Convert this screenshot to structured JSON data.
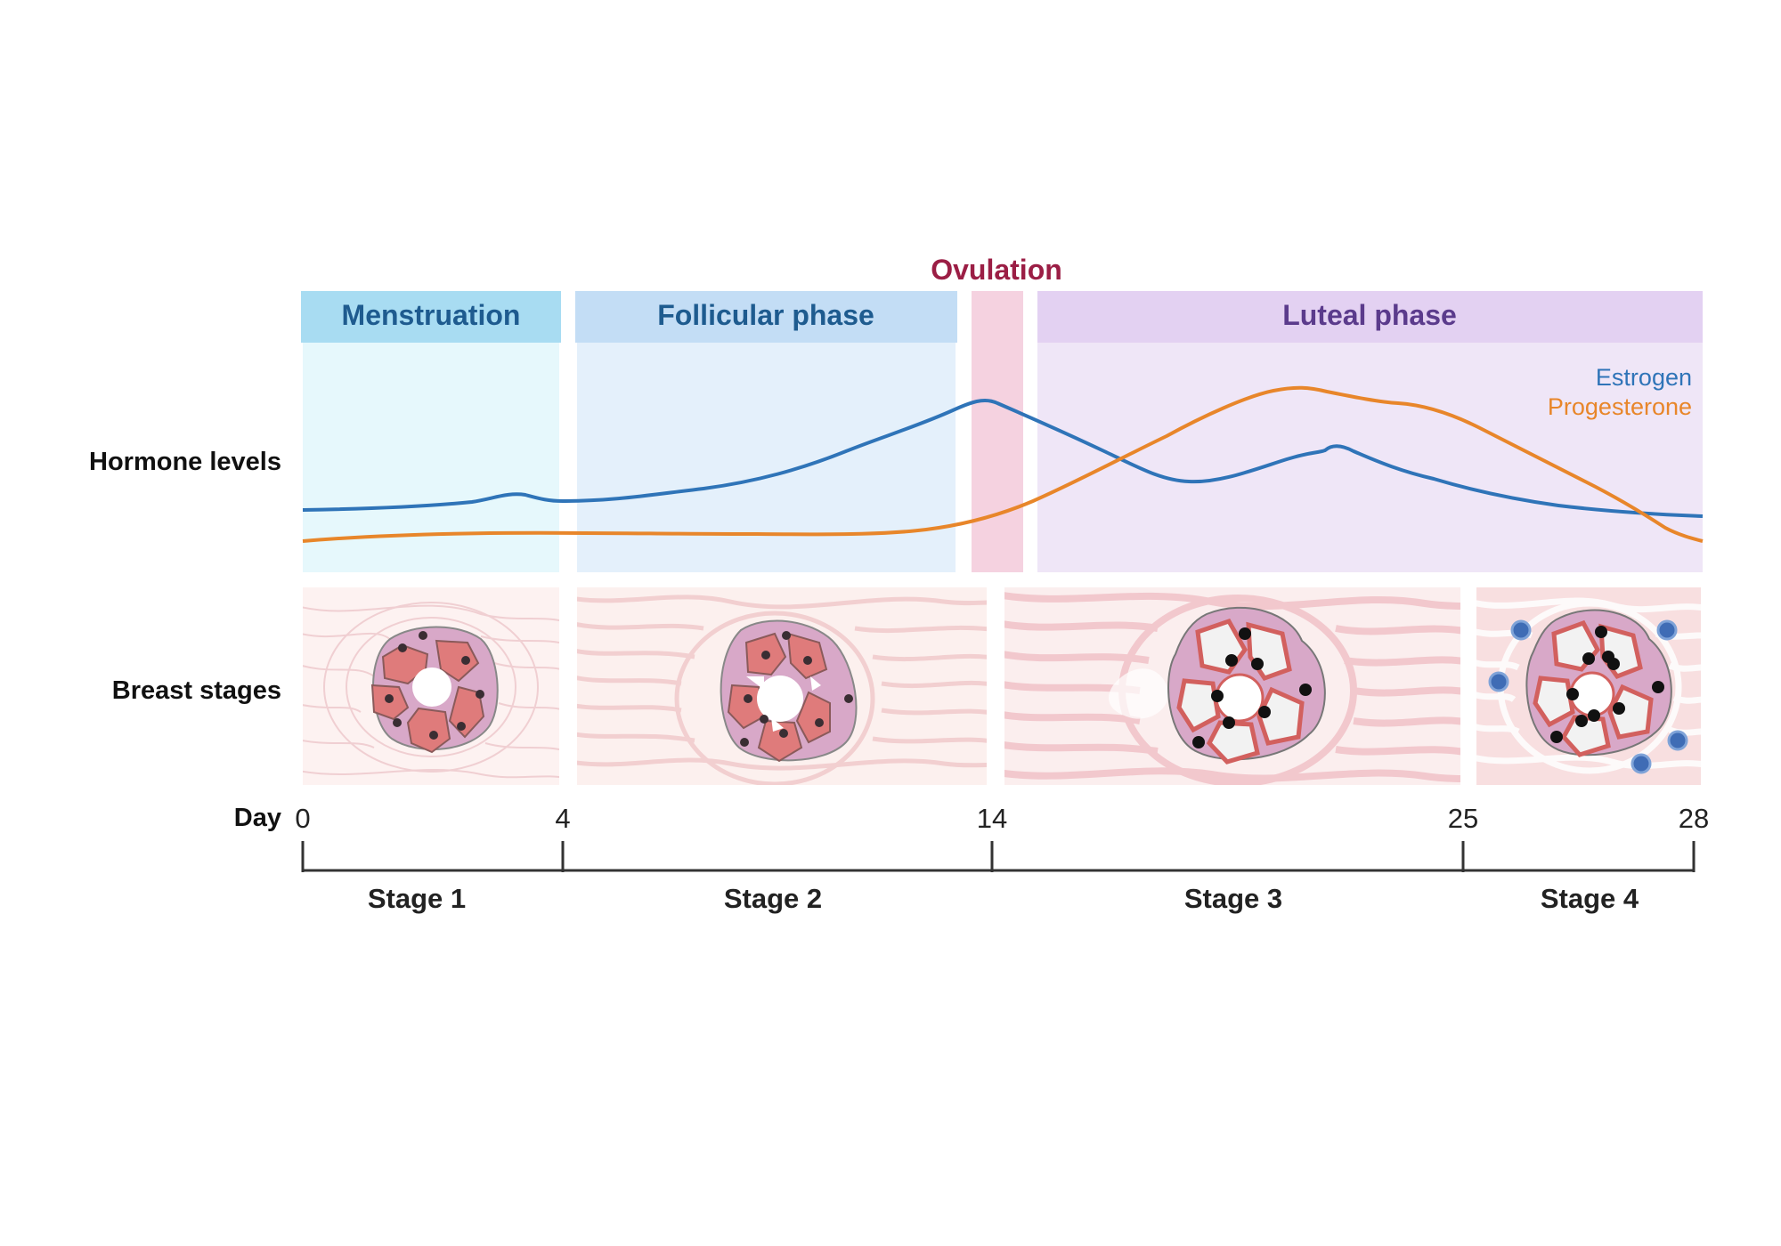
{
  "row_labels": {
    "hormone_levels": "Hormone levels",
    "breast_stages": "Breast stages"
  },
  "phases": {
    "menstruation": "Menstruation",
    "follicular": "Follicular phase",
    "ovulation": "Ovulation",
    "luteal": "Luteal phase"
  },
  "legend": {
    "estrogen": "Estrogen",
    "progesterone": "Progesterone"
  },
  "axis": {
    "label": "Day",
    "ticks": [
      "0",
      "4",
      "14",
      "25",
      "28"
    ]
  },
  "stages": [
    "Stage 1",
    "Stage 2",
    "Stage 3",
    "Stage 4"
  ],
  "colors": {
    "estrogen": "#2f74b8",
    "progesterone": "#e8862a",
    "menstruation_header": "#a8dcf2",
    "menstruation_body": "#e6f8fc",
    "menstruation_text": "#1e5b8f",
    "follicular_header": "#c3ddf5",
    "follicular_body": "#e4f0fb",
    "follicular_text": "#1e5b8f",
    "ovulation_band": "#f5d2e0",
    "ovulation_text": "#9b1e45",
    "luteal_header": "#e3d1f2",
    "luteal_body": "#efe6f7",
    "luteal_text": "#5b3b8c"
  }
}
